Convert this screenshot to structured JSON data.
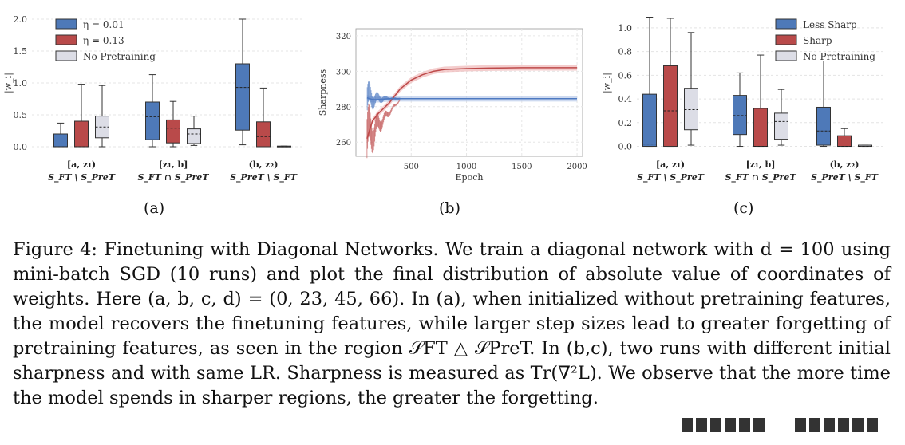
{
  "colors": {
    "blue": "#4e79b8",
    "red": "#b94a4a",
    "grey": "#dcdde6",
    "sharp_line": "#bd4a4a",
    "lesssharp_line": "#4d79c1",
    "sharp_band": "#f0b8b8",
    "lesssharp_band": "#b9cbea"
  },
  "figure": {
    "caption": "Figure 4: Finetuning with Diagonal Networks. We train a diagonal network with d = 100 using mini-batch SGD (10 runs) and plot the final distribution of absolute value of coordinates of weights. Here (a, b, c, d) = (0, 23, 45, 66). In (a), when initialized without pretraining features, the model recovers the finetuning features, while larger step sizes lead to greater forgetting of pretraining features, as seen in the region 𝒮FT △ 𝒮PreT. In (b,c), two runs with different initial sharpness and with same LR. Sharpness is measured as Tr(∇²L). We observe that the more time the model spends in sharper regions, the greater the forgetting."
  },
  "chart_data": [
    {
      "type": "box",
      "panel_label": "(a)",
      "ylabel": "|w_i|",
      "ylim": [
        -0.05,
        2.05
      ],
      "yticks": [
        "0.0",
        "0.5",
        "1.0",
        "1.5",
        "2.0"
      ],
      "groups": [
        {
          "label_top": "[a, z₁)",
          "label_bottom": "S_FT \\ S_PreT"
        },
        {
          "label_top": "[z₁, b]",
          "label_bottom": "S_FT ∩ S_PreT"
        },
        {
          "label_top": "(b, z₂)",
          "label_bottom": "S_PreT \\ S_FT"
        }
      ],
      "series": [
        {
          "name": "η = 0.01",
          "color": "blue",
          "boxes": [
            {
              "min": 0.0,
              "q1": 0.0,
              "med": 0.0,
              "mean": 0.0,
              "q3": 0.2,
              "max": 0.37
            },
            {
              "min": 0.0,
              "q1": 0.11,
              "med": 0.47,
              "mean": 0.47,
              "q3": 0.7,
              "max": 1.13
            },
            {
              "min": 0.03,
              "q1": 0.26,
              "med": 0.93,
              "mean": 0.93,
              "q3": 1.3,
              "max": 2.0
            }
          ]
        },
        {
          "name": "η = 0.13",
          "color": "red",
          "boxes": [
            {
              "min": 0.0,
              "q1": 0.0,
              "med": 0.0,
              "mean": 0.0,
              "q3": 0.4,
              "max": 0.98
            },
            {
              "min": 0.0,
              "q1": 0.06,
              "med": 0.29,
              "mean": 0.29,
              "q3": 0.42,
              "max": 0.71
            },
            {
              "min": 0.0,
              "q1": 0.0,
              "med": 0.16,
              "mean": 0.16,
              "q3": 0.39,
              "max": 0.92
            }
          ]
        },
        {
          "name": "No Pretraining",
          "color": "grey",
          "boxes": [
            {
              "min": 0.0,
              "q1": 0.14,
              "med": 0.31,
              "mean": 0.31,
              "q3": 0.48,
              "max": 0.96
            },
            {
              "min": 0.02,
              "q1": 0.05,
              "med": 0.2,
              "mean": 0.2,
              "q3": 0.28,
              "max": 0.48
            },
            {
              "min": 0.0,
              "q1": 0.0,
              "med": 0.0,
              "mean": 0.0,
              "q3": 0.01,
              "max": 0.01
            }
          ]
        }
      ],
      "legend": "top-left"
    },
    {
      "type": "line",
      "panel_label": "(b)",
      "xlabel": "Epoch",
      "ylabel": "Sharpness",
      "xlim": [
        0,
        2050
      ],
      "ylim": [
        252,
        324
      ],
      "xticks": [
        "500",
        "1000",
        "1500",
        "2000"
      ],
      "yticks": [
        "260",
        "280",
        "300",
        "320"
      ],
      "series": [
        {
          "name": "Sharp",
          "color": "sharp_line",
          "x": [
            100,
            150,
            200,
            250,
            300,
            350,
            400,
            500,
            600,
            700,
            800,
            1000,
            1200,
            1500,
            2000
          ],
          "y": [
            262,
            272,
            276,
            279,
            282,
            286,
            290,
            295,
            298,
            300,
            301,
            301.5,
            301.8,
            302,
            302
          ]
        },
        {
          "name": "Less Sharp",
          "color": "lesssharp_line",
          "x": [
            100,
            150,
            200,
            300,
            500,
            1000,
            1500,
            2000
          ],
          "y": [
            285,
            284,
            284,
            284.5,
            284.5,
            284.5,
            284.5,
            284.5
          ]
        }
      ]
    },
    {
      "type": "box",
      "panel_label": "(c)",
      "ylabel": "|w_i|",
      "ylim": [
        -0.03,
        1.1
      ],
      "yticks": [
        "0.0",
        "0.2",
        "0.4",
        "0.6",
        "0.8",
        "1.0"
      ],
      "groups": [
        {
          "label_top": "[a, z₁)",
          "label_bottom": "S_FT \\ S_PreT"
        },
        {
          "label_top": "[z₁, b]",
          "label_bottom": "S_FT ∩ S_PreT"
        },
        {
          "label_top": "(b, z₂)",
          "label_bottom": "S_PreT \\ S_FT"
        }
      ],
      "series": [
        {
          "name": "Less Sharp",
          "color": "blue",
          "boxes": [
            {
              "min": 0.0,
              "q1": 0.0,
              "med": 0.02,
              "mean": 0.02,
              "q3": 0.44,
              "max": 1.09
            },
            {
              "min": 0.0,
              "q1": 0.1,
              "med": 0.26,
              "mean": 0.26,
              "q3": 0.43,
              "max": 0.62
            },
            {
              "min": 0.0,
              "q1": 0.01,
              "med": 0.13,
              "mean": 0.13,
              "q3": 0.33,
              "max": 0.72
            }
          ]
        },
        {
          "name": "Sharp",
          "color": "red",
          "boxes": [
            {
              "min": 0.0,
              "q1": 0.0,
              "med": 0.3,
              "mean": 0.3,
              "q3": 0.68,
              "max": 1.08
            },
            {
              "min": 0.0,
              "q1": 0.0,
              "med": 0.0,
              "mean": 0.0,
              "q3": 0.32,
              "max": 0.77
            },
            {
              "min": 0.0,
              "q1": 0.0,
              "med": 0.0,
              "mean": 0.0,
              "q3": 0.09,
              "max": 0.15
            }
          ]
        },
        {
          "name": "No Pretraining",
          "color": "grey",
          "boxes": [
            {
              "min": 0.01,
              "q1": 0.14,
              "med": 0.31,
              "mean": 0.31,
              "q3": 0.49,
              "max": 0.96
            },
            {
              "min": 0.01,
              "q1": 0.06,
              "med": 0.21,
              "mean": 0.21,
              "q3": 0.28,
              "max": 0.48
            },
            {
              "min": 0.0,
              "q1": 0.0,
              "med": 0.0,
              "mean": 0.0,
              "q3": 0.01,
              "max": 0.01
            }
          ]
        }
      ],
      "legend": "top-right"
    }
  ]
}
